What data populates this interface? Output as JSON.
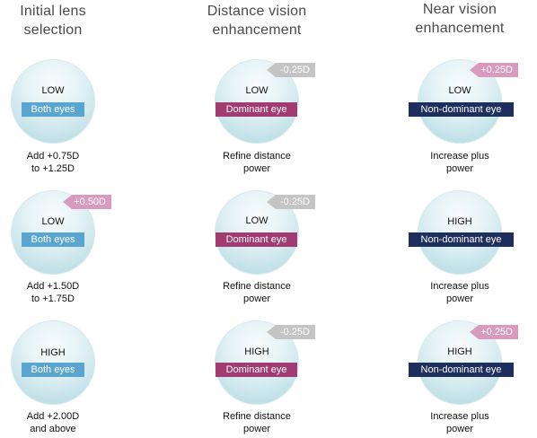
{
  "headers": [
    {
      "line1": "Initial lens",
      "line2": "selection"
    },
    {
      "line1": "Distance vision",
      "line2": "enhancement"
    },
    {
      "line1": "Near vision",
      "line2": "enhancement"
    }
  ],
  "rows": [
    {
      "cells": [
        {
          "level": "LOW",
          "eye": "Both eyes",
          "tag": "",
          "caption1": "Add +0.75D",
          "caption2": "to +1.25D"
        },
        {
          "level": "LOW",
          "eye": "Dominant eye",
          "tag": "-0.25D",
          "caption1": "Refine distance",
          "caption2": "power"
        },
        {
          "level": "LOW",
          "eye": "Non-dominant eye",
          "tag": "+0.25D",
          "caption1": "Increase plus",
          "caption2": "power"
        }
      ]
    },
    {
      "cells": [
        {
          "level": "LOW",
          "eye": "Both eyes",
          "tag": "+0.50D",
          "caption1": "Add +1.50D",
          "caption2": "to +1.75D"
        },
        {
          "level": "LOW",
          "eye": "Dominant eye",
          "tag": "-0.25D",
          "caption1": "Refine distance",
          "caption2": "power"
        },
        {
          "level": "HIGH",
          "eye": "Non-dominant eye",
          "tag": "",
          "caption1": "Increase plus",
          "caption2": "power"
        }
      ]
    },
    {
      "cells": [
        {
          "level": "HIGH",
          "eye": "Both eyes",
          "tag": "",
          "caption1": "Add +2.00D",
          "caption2": "and above"
        },
        {
          "level": "HIGH",
          "eye": "Dominant eye",
          "tag": "-0.25D",
          "caption1": "Refine distance",
          "caption2": "power"
        },
        {
          "level": "HIGH",
          "eye": "Non-dominant eye",
          "tag": "+0.25D",
          "caption1": "Increase plus",
          "caption2": "power"
        }
      ]
    }
  ],
  "colors": {
    "both_eyes": "#5aa5cf",
    "dominant_eye": "#a23b72",
    "non_dominant_eye": "#1e2f5e",
    "minus_tag": "#c4c4c4",
    "plus_tag": "#d99ac0"
  }
}
